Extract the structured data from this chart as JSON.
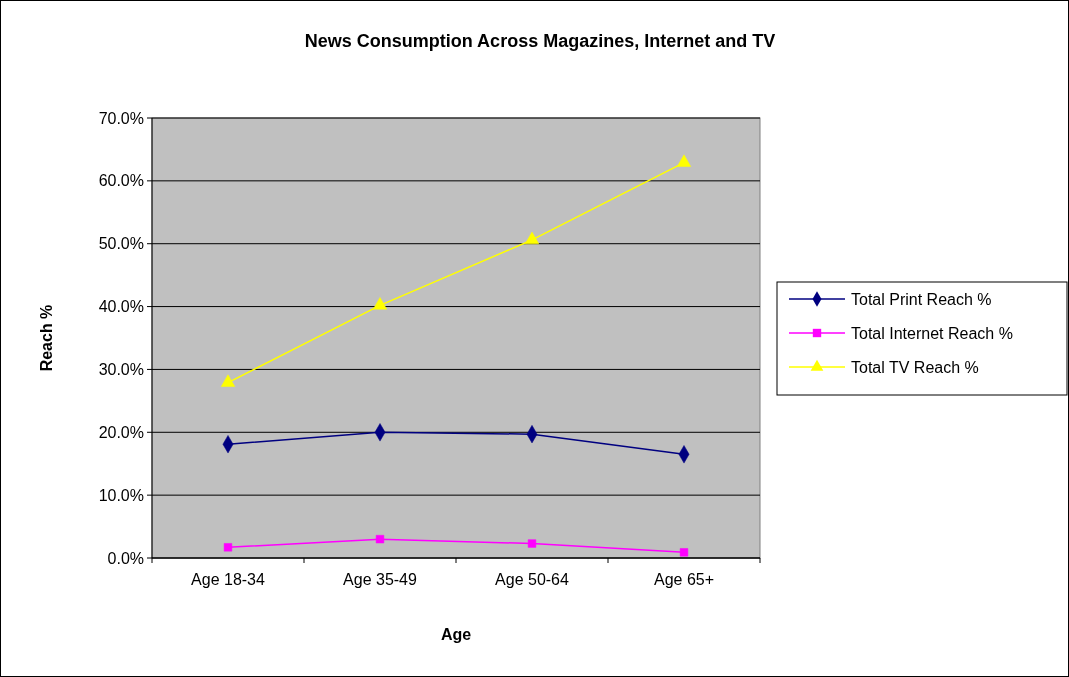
{
  "chart_data": {
    "type": "line",
    "title": "News Consumption Across Magazines, Internet and TV",
    "xlabel": "Age",
    "ylabel": "Reach %",
    "categories": [
      "Age 18-34",
      "Age 35-49",
      "Age 50-64",
      "Age 65+"
    ],
    "series": [
      {
        "name": "Total Print Reach %",
        "color": "#000080",
        "marker": "diamond",
        "values": [
          18.1,
          20.0,
          19.7,
          16.5
        ]
      },
      {
        "name": "Total Internet Reach %",
        "color": "#ff00ff",
        "marker": "square",
        "values": [
          1.7,
          3.0,
          2.3,
          0.9
        ]
      },
      {
        "name": "Total TV Reach %",
        "color": "#ffff00",
        "marker": "triangle",
        "values": [
          27.9,
          40.2,
          50.6,
          62.9
        ]
      }
    ],
    "ylim": [
      0,
      70
    ],
    "yticks": [
      {
        "value": 0,
        "label": "0.0%"
      },
      {
        "value": 10,
        "label": "10.0%"
      },
      {
        "value": 20,
        "label": "20.0%"
      },
      {
        "value": 30,
        "label": "30.0%"
      },
      {
        "value": 40,
        "label": "40.0%"
      },
      {
        "value": 50,
        "label": "50.0%"
      },
      {
        "value": 60,
        "label": "60.0%"
      },
      {
        "value": 70,
        "label": "70.0%"
      }
    ],
    "grid": "y",
    "legend": "right",
    "line_style": "solid"
  }
}
